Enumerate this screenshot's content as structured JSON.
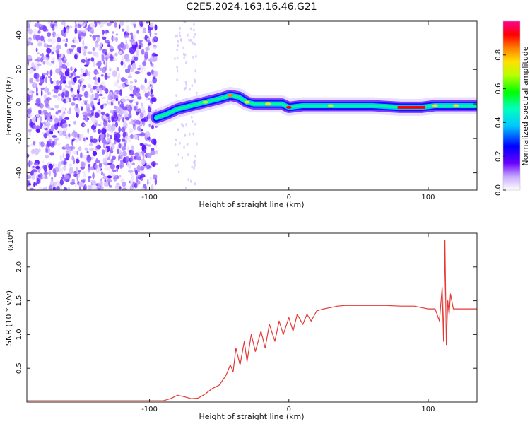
{
  "title": "C2E5.2024.163.16.46.G21",
  "colors": {
    "snr_line": "#e53935",
    "axis": "#222222",
    "noise_purple": "#7a3cff"
  },
  "chart_data": [
    {
      "type": "heatmap",
      "xlabel": "Height of straight line (km)",
      "ylabel": "Frequency (Hz)",
      "xlim": [
        -188,
        135
      ],
      "ylim": [
        -50,
        48
      ],
      "x_ticks": [
        -100,
        0,
        100
      ],
      "y_ticks": [
        -40,
        -20,
        0,
        20,
        40
      ],
      "x_tick_labels": [
        "-100",
        "0",
        "100"
      ],
      "y_tick_labels": [
        "-40",
        "-20",
        "0",
        "20",
        "40"
      ],
      "colorbar": {
        "label": "Normalized spectral amplitude",
        "range": [
          0,
          1
        ],
        "ticks": [
          0.0,
          0.2,
          0.4,
          0.6,
          0.8
        ],
        "tick_labels": [
          "0.0",
          "0.2",
          "0.4",
          "0.6",
          "0.8"
        ]
      },
      "ridge": {
        "x": [
          -95,
          -88,
          -80,
          -70,
          -60,
          -50,
          -42,
          -36,
          -30,
          -25,
          -15,
          -5,
          0,
          10,
          30,
          60,
          80,
          95,
          105,
          110,
          120,
          135
        ],
        "y": [
          -8,
          -6,
          -3,
          -1,
          1,
          3,
          5,
          4,
          1,
          0,
          0,
          0,
          -2,
          -1,
          -1,
          -1,
          -2,
          -2,
          -1,
          -1,
          -1,
          -1
        ]
      }
    },
    {
      "type": "line",
      "xlabel": "Height of straight line (km)",
      "ylabel": "SNR (10 * v/v)",
      "y_multiplier": "(x10⁴)",
      "xlim": [
        -188,
        135
      ],
      "ylim": [
        0,
        2.5
      ],
      "x_ticks": [
        -100,
        0,
        100
      ],
      "y_ticks": [
        0.5,
        1.0,
        1.5,
        2.0
      ],
      "x_tick_labels": [
        "-100",
        "0",
        "100"
      ],
      "y_tick_labels": [
        "0.5",
        "1.0",
        "1.5",
        "2.0"
      ],
      "series": [
        {
          "x": [
            -188,
            -150,
            -120,
            -100,
            -90,
            -85,
            -80,
            -75,
            -70,
            -65,
            -60,
            -55,
            -50,
            -45,
            -42,
            -40,
            -38,
            -35,
            -32,
            -30,
            -27,
            -24,
            -20,
            -17,
            -14,
            -10,
            -7,
            -4,
            0,
            3,
            6,
            10,
            13,
            16,
            20,
            25,
            30,
            35,
            40,
            50,
            60,
            70,
            80,
            90,
            95,
            100,
            105,
            108,
            110,
            111,
            112,
            113,
            114,
            115,
            116,
            118,
            120,
            125,
            130,
            135
          ],
          "y": [
            0.02,
            0.02,
            0.02,
            0.02,
            0.02,
            0.05,
            0.1,
            0.08,
            0.05,
            0.06,
            0.12,
            0.2,
            0.25,
            0.4,
            0.55,
            0.45,
            0.8,
            0.55,
            0.9,
            0.6,
            1.0,
            0.75,
            1.05,
            0.8,
            1.15,
            0.9,
            1.2,
            1.0,
            1.25,
            1.05,
            1.3,
            1.15,
            1.3,
            1.2,
            1.35,
            1.38,
            1.4,
            1.42,
            1.43,
            1.43,
            1.43,
            1.43,
            1.42,
            1.42,
            1.4,
            1.38,
            1.38,
            1.2,
            1.7,
            0.9,
            2.4,
            0.85,
            1.5,
            1.3,
            1.6,
            1.38,
            1.38,
            1.38,
            1.38,
            1.38
          ]
        }
      ]
    }
  ]
}
